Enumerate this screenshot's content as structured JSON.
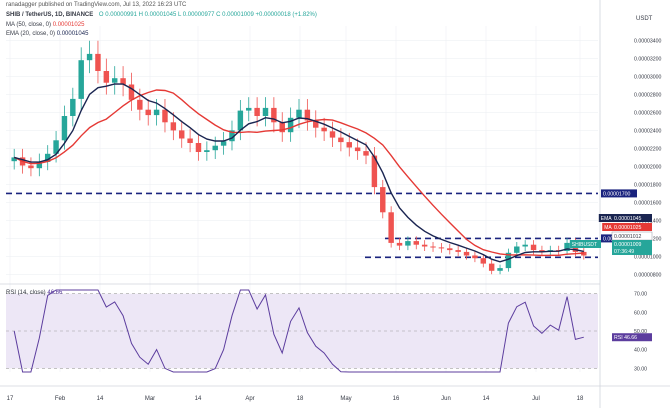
{
  "header": {
    "publisher": "ranadagger published on TradingView.com, Jul 13, 2022 16:23 UTC",
    "symbol_line": "SHIB / TetherUS, 1D, BINANCE",
    "ohlc": "O 0.00000991  H 0.00001045  L 0.00000977  C 0.00001009  +0.00000018 (+1.82%)",
    "ma_line_label": "MA (50, close, 0)",
    "ma_line_value": "0.00001025",
    "ema_line_label": "EMA (20, close, 0)",
    "ema_line_value": "0.00001045",
    "rsi_line_label": "RSI (14, close)",
    "rsi_line_value": "46.66"
  },
  "colors": {
    "up": "#26a69a",
    "down": "#ef5350",
    "ma": "#e53935",
    "ema": "#1a2551",
    "rsi": "#5c3d9e",
    "rsi_band": "#ede7f6",
    "level": "#1a237e",
    "grid": "#eef0f3"
  },
  "chart_data": {
    "type": "candlestick",
    "title": "SHIB / TetherUS, 1D, BINANCE",
    "y_axis_title": "USDT",
    "y_ticks": [
      "0.00000800",
      "0.00001000",
      "0.00001200",
      "0.00001400",
      "0.00001600",
      "0.00001800",
      "0.00002000",
      "0.00002200",
      "0.00002400",
      "0.00002600",
      "0.00002800",
      "0.00003000",
      "0.00003200",
      "0.00003400"
    ],
    "x_ticks": [
      "17",
      "Feb",
      "14",
      "Mar",
      "14",
      "Apr",
      "18",
      "May",
      "16",
      "Jun",
      "14",
      "Jul",
      "18"
    ],
    "ylim": [
      7.6e-06,
      3.56e-05
    ],
    "support_resistance_levels": [
      {
        "value": 1.7e-05,
        "label": "0.00001700"
      },
      {
        "value": 1.2e-05,
        "label": "0.00001200"
      },
      {
        "value": 9.9e-06,
        "label": ""
      }
    ],
    "price_tags": [
      {
        "name": "EMA",
        "label": "0.00001045",
        "color": "#1a2551"
      },
      {
        "name": "MA",
        "label": "0.00001025",
        "color": "#e53935"
      },
      {
        "name": "",
        "label": "0.00001012",
        "color": "#ffffff"
      },
      {
        "name": "SHIBUSDT",
        "label": "0.00001009",
        "color": "#26a69a"
      },
      {
        "name": "",
        "label": "07:36:49",
        "color": "#26a69a"
      }
    ],
    "close_approx": [
      2.1e-05,
      2.01e-05,
      1.98e-05,
      2.05e-05,
      2.14e-05,
      2.29e-05,
      2.56e-05,
      2.75e-05,
      3.18e-05,
      3.25e-05,
      3.06e-05,
      2.93e-05,
      2.98e-05,
      2.91e-05,
      2.74e-05,
      2.63e-05,
      2.57e-05,
      2.63e-05,
      2.49e-05,
      2.4e-05,
      2.31e-05,
      2.26e-05,
      2.16e-05,
      2.18e-05,
      2.23e-05,
      2.28e-05,
      2.4e-05,
      2.62e-05,
      2.65e-05,
      2.56e-05,
      2.65e-05,
      2.49e-05,
      2.38e-05,
      2.54e-05,
      2.63e-05,
      2.51e-05,
      2.43e-05,
      2.39e-05,
      2.32e-05,
      2.27e-05,
      2.21e-05,
      2.17e-05,
      2.12e-05,
      1.77e-05,
      1.49e-05,
      1.15e-05,
      1.12e-05,
      1.17e-05,
      1.13e-05,
      1.11e-05,
      1.1e-05,
      1.09e-05,
      1.07e-05,
      1.05e-05,
      1.01e-05,
      9.8e-06,
      9.2e-06,
      8.4e-06,
      8.7e-06,
      1.04e-05,
      1.11e-05,
      1.13e-05,
      1.07e-05,
      1.05e-05,
      1.07e-05,
      1.06e-05,
      1.15e-05,
      1.05e-05,
      1.01e-05
    ],
    "rsi": {
      "label": "RSI (14, close)",
      "value": 46.66,
      "ticks": [
        30.0,
        40.0,
        50.0,
        60.0,
        70.0
      ],
      "ylim": [
        28,
        72
      ],
      "band": [
        30,
        70
      ]
    }
  }
}
